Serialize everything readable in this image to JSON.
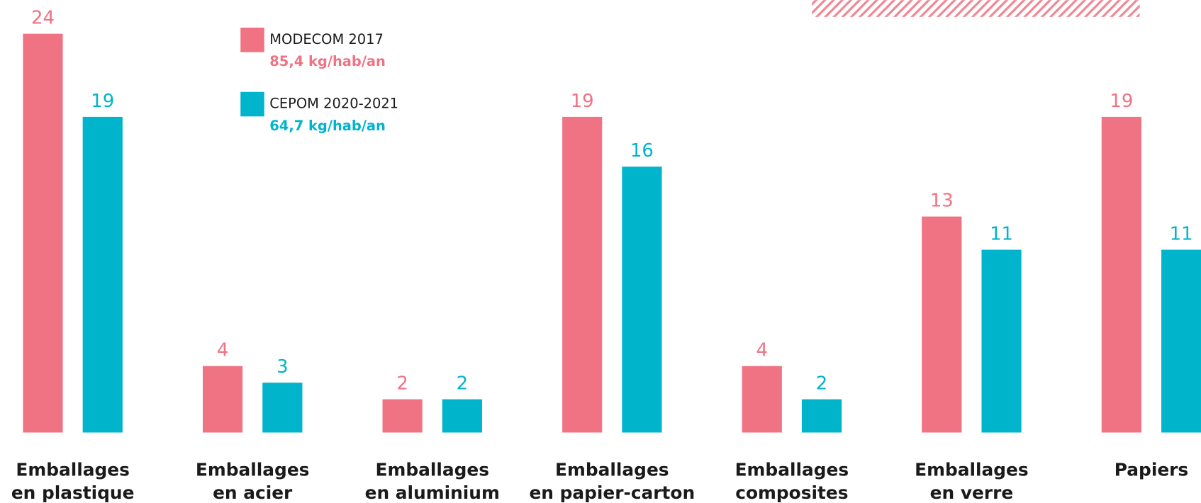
{
  "chart_data": {
    "type": "bar",
    "categories": [
      [
        "Emballages",
        "en plastique"
      ],
      [
        "Emballages",
        "en acier"
      ],
      [
        "Emballages",
        "en aluminium"
      ],
      [
        "Emballages",
        "en papier-carton"
      ],
      [
        "Emballages",
        "composites"
      ],
      [
        "Emballages",
        "en verre"
      ],
      [
        "Papiers"
      ]
    ],
    "series": [
      {
        "name": "MODECOM 2017",
        "total": "85,4 kg/hab/an",
        "color": "#ef7383",
        "values": [
          24,
          4,
          2,
          19,
          4,
          13,
          19
        ]
      },
      {
        "name": "CEPOM 2020-2021",
        "total": "64,7 kg/hab/an",
        "color": "#00b4cc",
        "values": [
          19,
          3,
          2,
          16,
          2,
          11,
          11
        ]
      }
    ],
    "ylim": [
      0,
      24
    ]
  }
}
